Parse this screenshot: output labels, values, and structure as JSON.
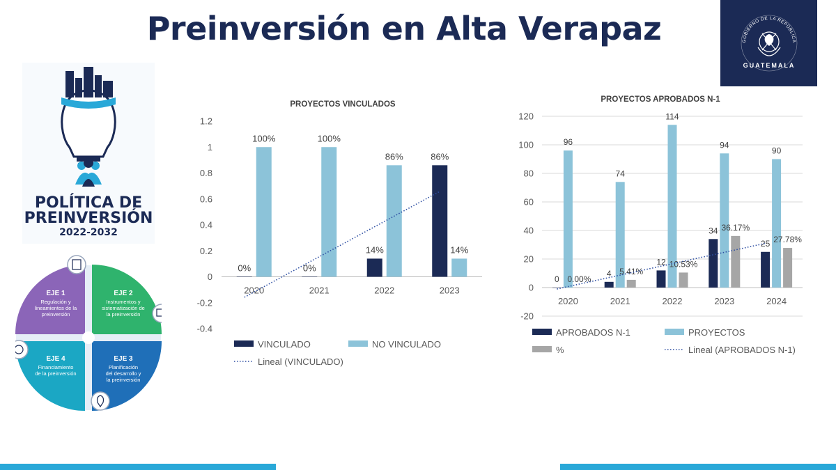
{
  "header": {
    "title": "Preinversión en Alta Verapaz",
    "gov_ring_text": "GOBIERNO DE LA REPÚBLICA",
    "gov_name": "GUATEMALA"
  },
  "policy": {
    "line1": "POLÍTICA DE",
    "line2": "PREINVERSIÓN",
    "years": "2022-2032",
    "ejes": [
      {
        "title": "EJE 1",
        "lines": [
          "Regulación y",
          "lineamientos de la",
          "preinversión"
        ],
        "color": "#8b65b8"
      },
      {
        "title": "EJE 2",
        "lines": [
          "Instrumentos y",
          "sistematización de",
          "la preinversión"
        ],
        "color": "#2fb36d"
      },
      {
        "title": "EJE 3",
        "lines": [
          "Planificación",
          "del desarrollo y",
          "la preinversión"
        ],
        "color": "#1f6fb8"
      },
      {
        "title": "EJE 4",
        "lines": [
          "Financiamiento",
          "de la preinversión"
        ],
        "color": "#1ba7c4"
      }
    ]
  },
  "colors": {
    "navy": "#1b2a55",
    "light_blue": "#8cc3d9",
    "gray": "#a6a6a6",
    "trend": "#2e4fa3",
    "accent_bar": "#29a8d8"
  },
  "chart_data": [
    {
      "type": "bar",
      "title": "PROYECTOS VINCULADOS",
      "categories": [
        "2020",
        "2021",
        "2022",
        "2023"
      ],
      "ylim": [
        -0.4,
        1.2
      ],
      "yticks": [
        "-0.4",
        "-0.2",
        "0",
        "0.2",
        "0.4",
        "0.6",
        "0.8",
        "1",
        "1.2"
      ],
      "series": [
        {
          "name": "VINCULADO",
          "values": [
            0,
            0,
            0.14,
            0.86
          ],
          "labels": [
            "0%",
            "0%",
            "14%",
            "86%"
          ],
          "color": "#1b2a55"
        },
        {
          "name": "NO VINCULADO",
          "values": [
            1,
            1,
            0.86,
            0.14
          ],
          "labels": [
            "100%",
            "100%",
            "86%",
            "14%"
          ],
          "color": "#8cc3d9"
        }
      ],
      "trendline": {
        "name": "Lineal (VINCULADO)",
        "of": "VINCULADO"
      },
      "grid": false,
      "legend_position": "bottom"
    },
    {
      "type": "bar",
      "title": "PROYECTOS APROBADOS N-1",
      "categories": [
        "2020",
        "2021",
        "2022",
        "2023",
        "2024"
      ],
      "ylim": [
        -20,
        120
      ],
      "yticks": [
        "-20",
        "0",
        "20",
        "40",
        "60",
        "80",
        "100",
        "120"
      ],
      "series": [
        {
          "name": "APROBADOS N-1",
          "values": [
            0,
            4,
            12,
            34,
            25
          ],
          "labels": [
            "0",
            "4",
            "12",
            "34",
            "25"
          ],
          "color": "#1b2a55"
        },
        {
          "name": "PROYECTOS",
          "values": [
            96,
            74,
            114,
            94,
            90
          ],
          "labels": [
            "96",
            "74",
            "114",
            "94",
            "90"
          ],
          "color": "#8cc3d9"
        },
        {
          "name": "%",
          "values": [
            0,
            5.41,
            10.53,
            36.17,
            27.78
          ],
          "labels": [
            "0.00%",
            "5.41%",
            "10.53%",
            "36.17%",
            "27.78%"
          ],
          "color": "#a6a6a6"
        }
      ],
      "trendline": {
        "name": "Lineal (APROBADOS N-1)",
        "of": "APROBADOS N-1"
      },
      "grid": true,
      "legend_position": "bottom"
    }
  ]
}
